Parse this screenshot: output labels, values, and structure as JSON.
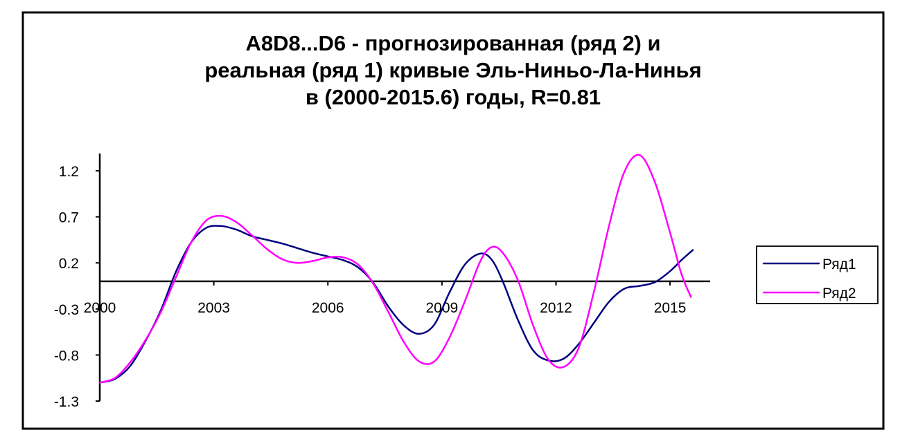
{
  "chart_data": {
    "type": "line",
    "title_lines": [
      "A8D8...D6 - прогнозированная (ряд 2) и",
      "реальная (ряд 1) кривые Эль-Ниньо-Ла-Нинья",
      "в (2000-2015.6) годы, R=0.81"
    ],
    "xlabel": "",
    "ylabel": "",
    "x_ticks": [
      "2000",
      "2003",
      "2006",
      "2009",
      "2012",
      "2015"
    ],
    "y_ticks": [
      "1.2",
      "0.7",
      "0.2",
      "-0.3",
      "-0.8",
      "-1.3"
    ],
    "xlim": [
      2000,
      2015.6
    ],
    "ylim": [
      -1.3,
      1.45
    ],
    "grid": false,
    "legend_position": "right",
    "series": [
      {
        "name": "Ряд1",
        "color": "#000080",
        "x": [
          2000,
          2000.4,
          2000.8,
          2001.2,
          2001.6,
          2002,
          2002.4,
          2002.8,
          2003.2,
          2003.6,
          2004,
          2004.4,
          2004.8,
          2005.2,
          2005.6,
          2006,
          2006.4,
          2006.8,
          2007.2,
          2007.6,
          2008,
          2008.4,
          2008.8,
          2009.2,
          2009.6,
          2010,
          2010.3,
          2010.6,
          2011,
          2011.4,
          2011.8,
          2012.2,
          2012.6,
          2013,
          2013.4,
          2013.8,
          2014.2,
          2014.6,
          2015,
          2015.3,
          2015.6
        ],
        "values": [
          -1.1,
          -1.06,
          -0.92,
          -0.65,
          -0.32,
          0.1,
          0.42,
          0.58,
          0.6,
          0.56,
          0.49,
          0.45,
          0.41,
          0.36,
          0.31,
          0.27,
          0.23,
          0.15,
          -0.02,
          -0.28,
          -0.48,
          -0.57,
          -0.47,
          -0.12,
          0.18,
          0.3,
          0.24,
          0.0,
          -0.42,
          -0.75,
          -0.86,
          -0.84,
          -0.68,
          -0.45,
          -0.22,
          -0.08,
          -0.05,
          -0.01,
          0.11,
          0.23,
          0.34
        ]
      },
      {
        "name": "Ряд2",
        "color": "#FF00FF",
        "x": [
          2000,
          2000.4,
          2000.8,
          2001.2,
          2001.6,
          2002,
          2002.4,
          2002.8,
          2003.2,
          2003.6,
          2004,
          2004.4,
          2004.8,
          2005.2,
          2005.6,
          2006,
          2006.4,
          2006.8,
          2007.2,
          2007.6,
          2008,
          2008.4,
          2008.8,
          2009.2,
          2009.6,
          2010,
          2010.3,
          2010.6,
          2011,
          2011.4,
          2011.8,
          2012.2,
          2012.6,
          2013,
          2013.4,
          2013.8,
          2014.2,
          2014.6,
          2015,
          2015.3,
          2015.55
        ],
        "values": [
          -1.1,
          -1.05,
          -0.88,
          -0.64,
          -0.34,
          0.04,
          0.42,
          0.66,
          0.71,
          0.64,
          0.5,
          0.35,
          0.24,
          0.2,
          0.22,
          0.26,
          0.26,
          0.18,
          -0.03,
          -0.34,
          -0.66,
          -0.87,
          -0.87,
          -0.61,
          -0.22,
          0.21,
          0.37,
          0.31,
          0.01,
          -0.48,
          -0.85,
          -0.93,
          -0.72,
          -0.11,
          0.61,
          1.19,
          1.37,
          1.08,
          0.53,
          0.08,
          -0.17
        ]
      }
    ]
  }
}
